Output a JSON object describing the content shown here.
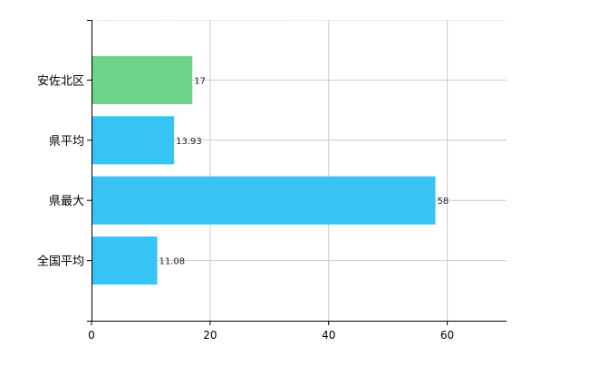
{
  "chart_data": {
    "type": "bar",
    "orientation": "horizontal",
    "categories": [
      "安佐北区",
      "県平均",
      "県最大",
      "全国平均"
    ],
    "values": [
      17,
      13.93,
      58,
      11.08
    ],
    "value_labels": [
      "17",
      "13.93",
      "58",
      "11.08"
    ],
    "bar_colors": [
      "#6dd388",
      "#38c3f5",
      "#38c3f5",
      "#38c3f5"
    ],
    "title": "",
    "xlabel": "",
    "ylabel": "",
    "xlim": [
      0,
      70
    ],
    "x_ticks": [
      0,
      20,
      40,
      60
    ],
    "x_tick_labels": [
      "0",
      "20",
      "40",
      "60"
    ],
    "grid": true,
    "grid_style": "dotted",
    "grid_color": "#cccccc",
    "legend": "none"
  }
}
